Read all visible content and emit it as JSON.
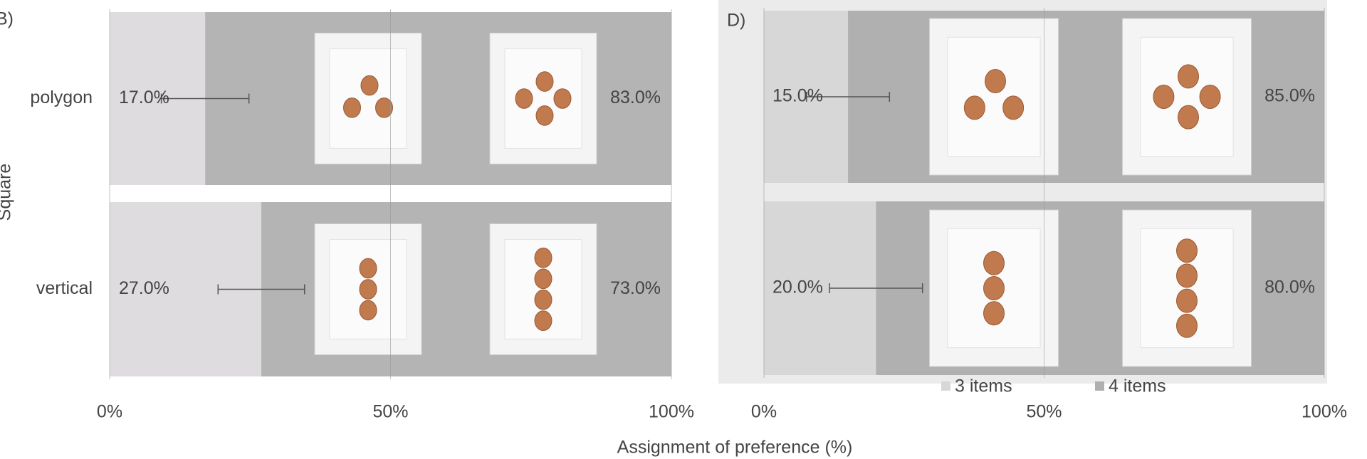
{
  "chart_data": [
    {
      "type": "bar",
      "panel_label": "B)",
      "ylabel": "Square",
      "xlabel": "Assignment of preference (%)",
      "categories": [
        "polygon",
        "vertical"
      ],
      "series": [
        {
          "color": "#dedcde",
          "values": [
            17.0,
            27.0
          ],
          "value_labels": [
            "17.0%",
            "27.0%"
          ],
          "errors": [
            7.8,
            7.7
          ]
        },
        {
          "color": "#b5b4b5",
          "values": [
            83.0,
            73.0
          ],
          "value_labels": [
            "83.0%",
            "73.0%"
          ]
        }
      ],
      "xlim": [
        0,
        100
      ],
      "xticks": [
        {
          "value": 0,
          "label": "0%"
        },
        {
          "value": 50,
          "label": "50%"
        },
        {
          "value": 100,
          "label": "100%"
        }
      ]
    },
    {
      "type": "bar",
      "panel_label": "D)",
      "categories": [
        "polygon",
        "vertical"
      ],
      "series": [
        {
          "name": "3 items",
          "color": "#d7d7d7",
          "values": [
            15.0,
            20.0
          ],
          "value_labels": [
            "15.0%",
            "20.0%"
          ],
          "errors": [
            7.4,
            8.3
          ]
        },
        {
          "name": "4 items",
          "color": "#b0b0b0",
          "values": [
            85.0,
            80.0
          ],
          "value_labels": [
            "85.0%",
            "80.0%"
          ]
        }
      ],
      "xlim": [
        0,
        100
      ],
      "xticks": [
        {
          "value": 0,
          "label": "0%"
        },
        {
          "value": 50,
          "label": "50%"
        },
        {
          "value": 100,
          "label": "100%"
        }
      ]
    }
  ]
}
